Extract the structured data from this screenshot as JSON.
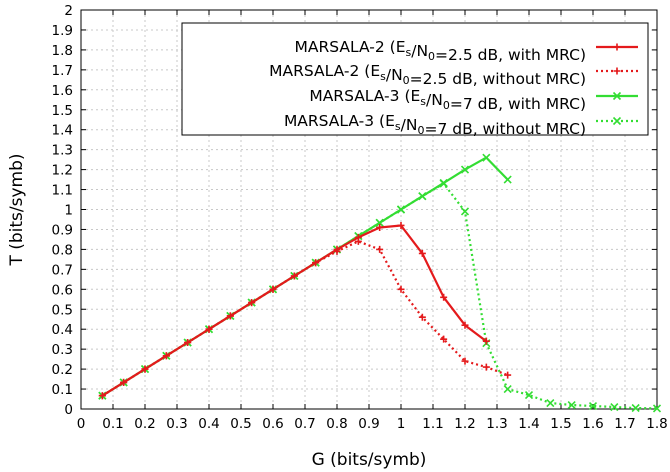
{
  "chart_data": {
    "type": "line",
    "title": "",
    "xlabel": "G (bits/symb)",
    "ylabel": "T (bits/symb)",
    "xlim": [
      0,
      1.8
    ],
    "ylim": [
      0,
      2
    ],
    "xticks": [
      0,
      0.1,
      0.2,
      0.3,
      0.4,
      0.5,
      0.6,
      0.7,
      0.8,
      0.9,
      1,
      1.1,
      1.2,
      1.3,
      1.4,
      1.5,
      1.6,
      1.7,
      1.8
    ],
    "yticks": [
      0,
      0.1,
      0.2,
      0.3,
      0.4,
      0.5,
      0.6,
      0.7,
      0.8,
      0.9,
      1,
      1.1,
      1.2,
      1.3,
      1.4,
      1.5,
      1.6,
      1.7,
      1.8,
      1.9,
      2
    ],
    "grid": true,
    "legend_position": "top-right",
    "series": [
      {
        "name": "MARSALA-2 (Es/N0=2.5 dB, with MRC)",
        "legend": {
          "pre": "MARSALA-2 (E",
          "sub1": "s",
          "mid": "/N",
          "sub2": "0",
          "post": "=2.5 dB, with MRC)"
        },
        "color": "#e41a1c",
        "dash": "solid",
        "marker": "plus",
        "x": [
          0.0667,
          0.1333,
          0.2,
          0.2667,
          0.3333,
          0.4,
          0.4667,
          0.5333,
          0.6,
          0.6667,
          0.7333,
          0.8,
          0.8667,
          0.9333,
          1.0,
          1.0667,
          1.1333,
          1.2,
          1.2667
        ],
        "y": [
          0.0667,
          0.1333,
          0.2,
          0.2667,
          0.3333,
          0.4,
          0.4667,
          0.5333,
          0.6,
          0.6667,
          0.7333,
          0.8,
          0.86,
          0.91,
          0.92,
          0.78,
          0.56,
          0.42,
          0.34
        ]
      },
      {
        "name": "MARSALA-2 (Es/N0=2.5 dB, without MRC)",
        "legend": {
          "pre": "MARSALA-2 (E",
          "sub1": "s",
          "mid": "/N",
          "sub2": "0",
          "post": "=2.5 dB, without MRC)"
        },
        "color": "#e41a1c",
        "dash": "dotted",
        "marker": "plus",
        "x": [
          0.0667,
          0.1333,
          0.2,
          0.2667,
          0.3333,
          0.4,
          0.4667,
          0.5333,
          0.6,
          0.6667,
          0.7333,
          0.8,
          0.8667,
          0.9333,
          1.0,
          1.0667,
          1.1333,
          1.2,
          1.2667,
          1.3333
        ],
        "y": [
          0.0667,
          0.1333,
          0.2,
          0.2667,
          0.3333,
          0.4,
          0.4667,
          0.5333,
          0.6,
          0.6667,
          0.7333,
          0.79,
          0.84,
          0.8,
          0.6,
          0.46,
          0.35,
          0.24,
          0.21,
          0.17
        ]
      },
      {
        "name": "MARSALA-3 (Es/N0=7 dB, with MRC)",
        "legend": {
          "pre": "MARSALA-3 (E",
          "sub1": "s",
          "mid": "/N",
          "sub2": "0",
          "post": "=7 dB, with MRC)"
        },
        "color": "#33dd33",
        "dash": "solid",
        "marker": "cross",
        "x": [
          0.0667,
          0.1333,
          0.2,
          0.2667,
          0.3333,
          0.4,
          0.4667,
          0.5333,
          0.6,
          0.6667,
          0.7333,
          0.8,
          0.8667,
          0.9333,
          1.0,
          1.0667,
          1.1333,
          1.2,
          1.2667,
          1.3333
        ],
        "y": [
          0.0667,
          0.1333,
          0.2,
          0.2667,
          0.3333,
          0.4,
          0.4667,
          0.5333,
          0.6,
          0.6667,
          0.7333,
          0.8,
          0.8667,
          0.9333,
          1.0,
          1.0667,
          1.1333,
          1.2,
          1.26,
          1.15
        ]
      },
      {
        "name": "MARSALA-3 (Es/N0=7 dB, without MRC)",
        "legend": {
          "pre": "MARSALA-3 (E",
          "sub1": "s",
          "mid": "/N",
          "sub2": "0",
          "post": "=7 dB, without MRC)"
        },
        "color": "#33dd33",
        "dash": "dotted",
        "marker": "cross",
        "x": [
          0.0667,
          0.1333,
          0.2,
          0.2667,
          0.3333,
          0.4,
          0.4667,
          0.5333,
          0.6,
          0.6667,
          0.7333,
          0.8,
          0.8667,
          0.9333,
          1.0,
          1.0667,
          1.1333,
          1.2,
          1.2667,
          1.3333,
          1.4,
          1.4667,
          1.5333,
          1.6,
          1.6667,
          1.7333,
          1.8
        ],
        "y": [
          0.0667,
          0.1333,
          0.2,
          0.2667,
          0.3333,
          0.4,
          0.4667,
          0.5333,
          0.6,
          0.6667,
          0.7333,
          0.8,
          0.8667,
          0.9333,
          1.0,
          1.0667,
          1.13,
          0.99,
          0.33,
          0.1,
          0.07,
          0.03,
          0.02,
          0.015,
          0.01,
          0.005,
          0.003
        ]
      }
    ]
  }
}
